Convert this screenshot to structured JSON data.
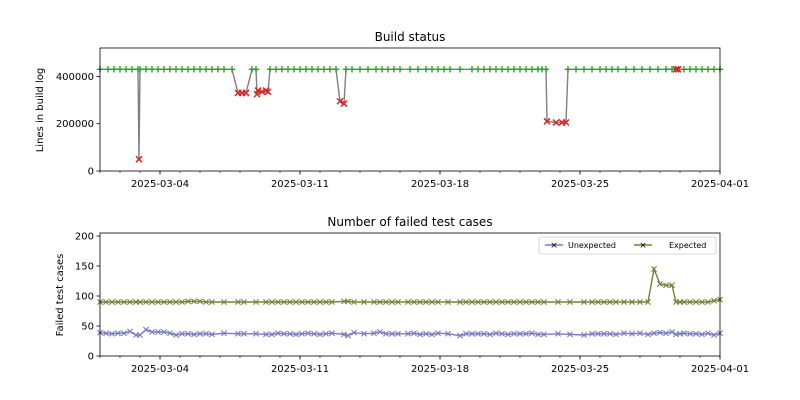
{
  "figure": {
    "background": "#ffffff"
  },
  "chart_data": [
    {
      "type": "line",
      "title": "Build status",
      "xlabel": "",
      "ylabel": "Lines in build log",
      "xlim": [
        "2025-03-01",
        "2025-04-01"
      ],
      "ylim": [
        0,
        520000
      ],
      "xticks": [
        "2025-03-04",
        "2025-03-11",
        "2025-03-18",
        "2025-03-25",
        "2025-04-01"
      ],
      "yticks": [
        0,
        200000,
        400000
      ],
      "ytick_labels": [
        "0",
        "200000",
        "400000"
      ],
      "series": [
        {
          "name": "Lines in build log",
          "line_color": "#808080",
          "points": [
            {
              "x": 0.0,
              "y": 430000,
              "status": "pass"
            },
            {
              "x": 0.4,
              "y": 430000,
              "status": "pass"
            },
            {
              "x": 0.7,
              "y": 430000,
              "status": "pass"
            },
            {
              "x": 1.0,
              "y": 430000,
              "status": "pass"
            },
            {
              "x": 1.3,
              "y": 430000,
              "status": "pass"
            },
            {
              "x": 1.6,
              "y": 430000,
              "status": "pass"
            },
            {
              "x": 1.9,
              "y": 430000,
              "status": "pass"
            },
            {
              "x": 1.95,
              "y": 50000,
              "status": "fail"
            },
            {
              "x": 2.0,
              "y": 430000,
              "status": "pass"
            },
            {
              "x": 2.3,
              "y": 430000,
              "status": "pass"
            },
            {
              "x": 2.6,
              "y": 430000,
              "status": "pass"
            },
            {
              "x": 2.9,
              "y": 430000,
              "status": "pass"
            },
            {
              "x": 3.2,
              "y": 430000,
              "status": "pass"
            },
            {
              "x": 3.5,
              "y": 430000,
              "status": "pass"
            },
            {
              "x": 3.8,
              "y": 430000,
              "status": "pass"
            },
            {
              "x": 4.1,
              "y": 430000,
              "status": "pass"
            },
            {
              "x": 4.4,
              "y": 430000,
              "status": "pass"
            },
            {
              "x": 4.7,
              "y": 430000,
              "status": "pass"
            },
            {
              "x": 5.0,
              "y": 430000,
              "status": "pass"
            },
            {
              "x": 5.3,
              "y": 430000,
              "status": "pass"
            },
            {
              "x": 5.6,
              "y": 430000,
              "status": "pass"
            },
            {
              "x": 5.9,
              "y": 430000,
              "status": "pass"
            },
            {
              "x": 6.2,
              "y": 430000,
              "status": "pass"
            },
            {
              "x": 6.6,
              "y": 430000,
              "status": "pass"
            },
            {
              "x": 6.9,
              "y": 330000,
              "status": "fail"
            },
            {
              "x": 7.1,
              "y": 330000,
              "status": "fail"
            },
            {
              "x": 7.3,
              "y": 330000,
              "status": "fail"
            },
            {
              "x": 7.6,
              "y": 430000,
              "status": "pass"
            },
            {
              "x": 7.8,
              "y": 430000,
              "status": "pass"
            },
            {
              "x": 7.85,
              "y": 325000,
              "status": "fail"
            },
            {
              "x": 7.9,
              "y": 340000,
              "status": "fail"
            },
            {
              "x": 8.1,
              "y": 335000,
              "status": "fail"
            },
            {
              "x": 8.3,
              "y": 340000,
              "status": "fail"
            },
            {
              "x": 8.4,
              "y": 335000,
              "status": "fail"
            },
            {
              "x": 8.5,
              "y": 430000,
              "status": "pass"
            },
            {
              "x": 8.8,
              "y": 430000,
              "status": "pass"
            },
            {
              "x": 9.1,
              "y": 430000,
              "status": "pass"
            },
            {
              "x": 9.4,
              "y": 430000,
              "status": "pass"
            },
            {
              "x": 9.7,
              "y": 430000,
              "status": "pass"
            },
            {
              "x": 10.0,
              "y": 430000,
              "status": "pass"
            },
            {
              "x": 10.3,
              "y": 430000,
              "status": "pass"
            },
            {
              "x": 10.6,
              "y": 430000,
              "status": "pass"
            },
            {
              "x": 10.9,
              "y": 430000,
              "status": "pass"
            },
            {
              "x": 11.2,
              "y": 430000,
              "status": "pass"
            },
            {
              "x": 11.5,
              "y": 430000,
              "status": "pass"
            },
            {
              "x": 11.8,
              "y": 430000,
              "status": "pass"
            },
            {
              "x": 12.0,
              "y": 295000,
              "status": "fail"
            },
            {
              "x": 12.2,
              "y": 285000,
              "status": "fail"
            },
            {
              "x": 12.3,
              "y": 430000,
              "status": "pass"
            },
            {
              "x": 12.6,
              "y": 430000,
              "status": "pass"
            },
            {
              "x": 13.0,
              "y": 430000,
              "status": "pass"
            },
            {
              "x": 13.4,
              "y": 430000,
              "status": "pass"
            },
            {
              "x": 13.8,
              "y": 430000,
              "status": "pass"
            },
            {
              "x": 14.1,
              "y": 430000,
              "status": "pass"
            },
            {
              "x": 14.4,
              "y": 430000,
              "status": "pass"
            },
            {
              "x": 14.7,
              "y": 430000,
              "status": "pass"
            },
            {
              "x": 15.0,
              "y": 430000,
              "status": "pass"
            },
            {
              "x": 15.5,
              "y": 430000,
              "status": "pass"
            },
            {
              "x": 15.9,
              "y": 430000,
              "status": "pass"
            },
            {
              "x": 16.3,
              "y": 430000,
              "status": "pass"
            },
            {
              "x": 16.6,
              "y": 430000,
              "status": "pass"
            },
            {
              "x": 16.9,
              "y": 430000,
              "status": "pass"
            },
            {
              "x": 17.2,
              "y": 430000,
              "status": "pass"
            },
            {
              "x": 17.5,
              "y": 430000,
              "status": "pass"
            },
            {
              "x": 18.0,
              "y": 430000,
              "status": "pass"
            },
            {
              "x": 18.6,
              "y": 430000,
              "status": "pass"
            },
            {
              "x": 18.9,
              "y": 430000,
              "status": "pass"
            },
            {
              "x": 19.2,
              "y": 430000,
              "status": "pass"
            },
            {
              "x": 19.5,
              "y": 430000,
              "status": "pass"
            },
            {
              "x": 19.8,
              "y": 430000,
              "status": "pass"
            },
            {
              "x": 20.1,
              "y": 430000,
              "status": "pass"
            },
            {
              "x": 20.4,
              "y": 430000,
              "status": "pass"
            },
            {
              "x": 20.7,
              "y": 430000,
              "status": "pass"
            },
            {
              "x": 21.0,
              "y": 430000,
              "status": "pass"
            },
            {
              "x": 21.3,
              "y": 430000,
              "status": "pass"
            },
            {
              "x": 21.6,
              "y": 430000,
              "status": "pass"
            },
            {
              "x": 21.9,
              "y": 430000,
              "status": "pass"
            },
            {
              "x": 22.1,
              "y": 430000,
              "status": "pass"
            },
            {
              "x": 22.3,
              "y": 430000,
              "status": "pass"
            },
            {
              "x": 22.35,
              "y": 210000,
              "status": "fail"
            },
            {
              "x": 22.8,
              "y": 205000,
              "status": "fail"
            },
            {
              "x": 23.1,
              "y": 205000,
              "status": "fail"
            },
            {
              "x": 23.3,
              "y": 205000,
              "status": "fail"
            },
            {
              "x": 23.4,
              "y": 430000,
              "status": "pass"
            },
            {
              "x": 23.8,
              "y": 430000,
              "status": "pass"
            },
            {
              "x": 24.2,
              "y": 430000,
              "status": "pass"
            },
            {
              "x": 24.6,
              "y": 430000,
              "status": "pass"
            },
            {
              "x": 25.0,
              "y": 430000,
              "status": "pass"
            },
            {
              "x": 25.3,
              "y": 430000,
              "status": "pass"
            },
            {
              "x": 25.6,
              "y": 430000,
              "status": "pass"
            },
            {
              "x": 25.9,
              "y": 430000,
              "status": "pass"
            },
            {
              "x": 26.3,
              "y": 430000,
              "status": "pass"
            },
            {
              "x": 26.7,
              "y": 430000,
              "status": "pass"
            },
            {
              "x": 27.1,
              "y": 430000,
              "status": "pass"
            },
            {
              "x": 27.5,
              "y": 430000,
              "status": "pass"
            },
            {
              "x": 27.9,
              "y": 430000,
              "status": "pass"
            },
            {
              "x": 28.3,
              "y": 430000,
              "status": "pass"
            },
            {
              "x": 28.6,
              "y": 430000,
              "status": "pass"
            },
            {
              "x": 28.8,
              "y": 430000,
              "status": "fail"
            },
            {
              "x": 28.9,
              "y": 430000,
              "status": "fail"
            },
            {
              "x": 29.2,
              "y": 430000,
              "status": "pass"
            },
            {
              "x": 29.5,
              "y": 430000,
              "status": "pass"
            },
            {
              "x": 29.8,
              "y": 430000,
              "status": "pass"
            },
            {
              "x": 30.1,
              "y": 430000,
              "status": "pass"
            },
            {
              "x": 30.4,
              "y": 430000,
              "status": "pass"
            },
            {
              "x": 30.7,
              "y": 430000,
              "status": "pass"
            },
            {
              "x": 31.0,
              "y": 430000,
              "status": "pass"
            }
          ]
        }
      ],
      "marker_legend": [
        {
          "status": "pass",
          "marker": "+",
          "color": "#2ca02c"
        },
        {
          "status": "fail",
          "marker": "x",
          "color": "#d62728"
        }
      ]
    },
    {
      "type": "line",
      "title": "Number of failed test cases",
      "xlabel": "",
      "ylabel": "Failed test cases",
      "xlim": [
        "2025-03-01",
        "2025-04-01"
      ],
      "ylim": [
        0,
        205
      ],
      "xticks": [
        "2025-03-04",
        "2025-03-11",
        "2025-03-18",
        "2025-03-25",
        "2025-04-01"
      ],
      "yticks": [
        0,
        50,
        100,
        150,
        200
      ],
      "ytick_labels": [
        "0",
        "50",
        "100",
        "150",
        "200"
      ],
      "legend_position": "upper right",
      "x": [
        0.0,
        0.3,
        0.6,
        0.9,
        1.2,
        1.5,
        1.8,
        2.0,
        2.3,
        2.6,
        2.9,
        3.2,
        3.5,
        3.8,
        4.1,
        4.4,
        4.7,
        5.0,
        5.3,
        5.6,
        6.2,
        6.9,
        7.2,
        7.8,
        8.3,
        8.6,
        8.9,
        9.2,
        9.5,
        9.8,
        10.1,
        10.4,
        10.7,
        11.0,
        11.3,
        11.6,
        12.2,
        12.4,
        12.7,
        13.2,
        13.7,
        14.0,
        14.3,
        14.6,
        14.9,
        15.4,
        15.7,
        16.0,
        16.3,
        16.6,
        16.9,
        17.4,
        18.0,
        18.3,
        18.6,
        18.9,
        19.2,
        19.5,
        19.8,
        20.1,
        20.4,
        20.7,
        21.0,
        21.3,
        21.6,
        21.9,
        22.2,
        22.9,
        23.5,
        24.2,
        24.6,
        24.9,
        25.2,
        25.5,
        25.8,
        26.2,
        26.6,
        27.0,
        27.4,
        27.7,
        28.0,
        28.3,
        28.6,
        28.8,
        29.0,
        29.2,
        29.5,
        29.8,
        30.1,
        30.4,
        30.7,
        31.0
      ],
      "series": [
        {
          "name": "Unexpected",
          "color": "#7b7bc0",
          "marker": "x",
          "values": [
            39,
            38,
            37,
            38,
            38,
            41,
            35,
            35,
            44,
            40,
            40,
            40,
            38,
            35,
            37,
            37,
            36,
            37,
            37,
            36,
            38,
            37,
            37,
            37,
            36,
            36,
            38,
            37,
            37,
            36,
            37,
            38,
            37,
            36,
            37,
            38,
            36,
            34,
            39,
            37,
            38,
            40,
            37,
            37,
            37,
            37,
            38,
            36,
            37,
            36,
            38,
            37,
            34,
            37,
            37,
            37,
            37,
            36,
            38,
            37,
            36,
            37,
            37,
            37,
            38,
            36,
            36,
            37,
            36,
            35,
            37,
            37,
            37,
            37,
            36,
            38,
            37,
            38,
            36,
            38,
            39,
            38,
            40,
            36,
            37,
            38,
            37,
            37,
            36,
            38,
            35,
            38
          ]
        },
        {
          "name": "Expected",
          "color": "#7b7f3c",
          "marker": "x",
          "values": [
            90,
            90,
            90,
            90,
            90,
            90,
            90,
            90,
            90,
            90,
            90,
            90,
            90,
            90,
            90,
            91,
            91,
            91,
            90,
            90,
            90,
            90,
            90,
            90,
            90,
            90,
            90,
            90,
            90,
            90,
            90,
            90,
            90,
            90,
            90,
            90,
            91,
            91,
            90,
            90,
            90,
            90,
            90,
            90,
            90,
            90,
            90,
            90,
            90,
            90,
            90,
            90,
            90,
            90,
            90,
            90,
            90,
            90,
            90,
            90,
            90,
            90,
            90,
            90,
            90,
            90,
            90,
            90,
            90,
            90,
            90,
            90,
            90,
            90,
            90,
            90,
            90,
            90,
            90,
            145,
            120,
            118,
            118,
            90,
            90,
            90,
            90,
            90,
            90,
            90,
            92,
            94
          ]
        }
      ]
    }
  ]
}
